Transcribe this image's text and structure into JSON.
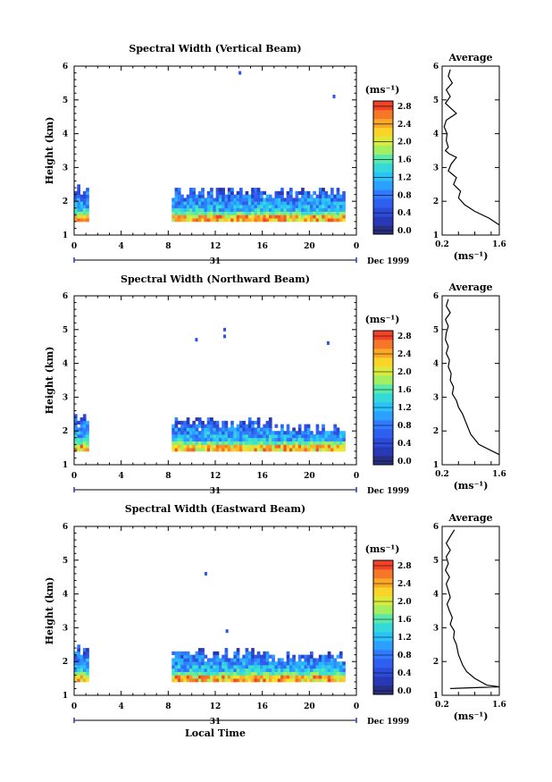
{
  "chart_data": [
    {
      "type": "heatmap",
      "title": "Spectral Width (Vertical Beam)",
      "ylabel": "Height (km)",
      "xlabel": "",
      "xticks": [
        "0",
        "4",
        "8",
        "12",
        "16",
        "20",
        "0"
      ],
      "yticks": [
        "1",
        "2",
        "3",
        "4",
        "5",
        "6"
      ],
      "xlim": [
        0,
        24
      ],
      "ylim": [
        1,
        6
      ],
      "date_axis": {
        "day": "31",
        "month_year": "Dec 1999"
      },
      "colorbar": {
        "unit": "(ms⁻¹)",
        "ticks": [
          "0.0",
          "0.4",
          "0.8",
          "1.2",
          "1.6",
          "2.0",
          "2.4",
          "2.8"
        ],
        "min": 0.0,
        "max": 3.0
      },
      "data_regions": [
        {
          "t0": 0.0,
          "t1": 1.2,
          "h0": 1.4,
          "h1": 2.5
        },
        {
          "t0": 8.3,
          "t1": 22.9,
          "h0": 1.4,
          "h1": 2.4
        }
      ],
      "isolated_points": [
        {
          "t": 14.1,
          "h": 5.8
        },
        {
          "t": 22.1,
          "h": 5.1
        }
      ],
      "average_profile": {
        "title": "Average",
        "xlabel": "(ms⁻¹)",
        "xticks": [
          "0.2",
          "1.6"
        ],
        "yticks": [
          "1",
          "2",
          "3",
          "4",
          "5",
          "6"
        ],
        "xlim": [
          0.2,
          1.6
        ],
        "ylim": [
          1,
          6
        ],
        "x": [
          0.4,
          0.35,
          0.45,
          0.3,
          0.4,
          0.28,
          0.55,
          0.3,
          0.25,
          0.32,
          0.3,
          0.35,
          0.28,
          0.38,
          0.55,
          0.42,
          0.35,
          0.55,
          0.48,
          0.65,
          0.6,
          0.75,
          1.0,
          1.35,
          1.6
        ],
        "y": [
          5.9,
          5.7,
          5.5,
          5.3,
          5.1,
          4.9,
          4.6,
          4.4,
          4.2,
          4.0,
          3.8,
          3.6,
          3.5,
          3.4,
          3.3,
          3.1,
          2.9,
          2.7,
          2.5,
          2.3,
          2.1,
          1.9,
          1.7,
          1.5,
          1.3
        ]
      }
    },
    {
      "type": "heatmap",
      "title": "Spectral Width (Northward Beam)",
      "ylabel": "Height (km)",
      "xlabel": "",
      "xticks": [
        "0",
        "4",
        "8",
        "12",
        "16",
        "20",
        "0"
      ],
      "yticks": [
        "1",
        "2",
        "3",
        "4",
        "5",
        "6"
      ],
      "xlim": [
        0,
        24
      ],
      "ylim": [
        1,
        6
      ],
      "date_axis": {
        "day": "31",
        "month_year": "Dec 1999"
      },
      "colorbar": {
        "unit": "(ms⁻¹)",
        "ticks": [
          "0.0",
          "0.4",
          "0.8",
          "1.2",
          "1.6",
          "2.0",
          "2.4",
          "2.8"
        ],
        "min": 0.0,
        "max": 3.0
      },
      "data_regions": [
        {
          "t0": 0.0,
          "t1": 1.2,
          "h0": 1.4,
          "h1": 2.5
        },
        {
          "t0": 8.3,
          "t1": 16.8,
          "h0": 1.4,
          "h1": 2.4
        },
        {
          "t0": 16.8,
          "t1": 22.9,
          "h0": 1.4,
          "h1": 2.2
        }
      ],
      "isolated_points": [
        {
          "t": 10.4,
          "h": 4.7
        },
        {
          "t": 12.8,
          "h": 4.8
        },
        {
          "t": 12.8,
          "h": 5.0
        },
        {
          "t": 21.6,
          "h": 4.6
        }
      ],
      "average_profile": {
        "title": "Average",
        "xlabel": "(ms⁻¹)",
        "xticks": [
          "0.2",
          "1.6"
        ],
        "yticks": [
          "1",
          "2",
          "3",
          "4",
          "5",
          "6"
        ],
        "xlim": [
          0.2,
          1.6
        ],
        "ylim": [
          1,
          6
        ],
        "x": [
          0.35,
          0.3,
          0.4,
          0.28,
          0.35,
          0.3,
          0.28,
          0.35,
          0.3,
          0.38,
          0.35,
          0.42,
          0.4,
          0.48,
          0.45,
          0.55,
          0.6,
          0.7,
          0.8,
          0.9,
          1.1,
          1.6
        ],
        "y": [
          5.9,
          5.7,
          5.5,
          5.3,
          5.1,
          4.9,
          4.7,
          4.5,
          4.3,
          4.1,
          3.9,
          3.7,
          3.5,
          3.3,
          3.1,
          2.9,
          2.7,
          2.5,
          2.2,
          1.9,
          1.6,
          1.3
        ]
      }
    },
    {
      "type": "heatmap",
      "title": "Spectral Width (Eastward Beam)",
      "ylabel": "Height (km)",
      "xlabel": "Local Time",
      "xticks": [
        "0",
        "4",
        "8",
        "12",
        "16",
        "20",
        "0"
      ],
      "yticks": [
        "1",
        "2",
        "3",
        "4",
        "5",
        "6"
      ],
      "xlim": [
        0,
        24
      ],
      "ylim": [
        1,
        6
      ],
      "date_axis": {
        "day": "31",
        "month_year": "Dec 1999"
      },
      "colorbar": {
        "unit": "(ms⁻¹)",
        "ticks": [
          "0.0",
          "0.4",
          "0.8",
          "1.2",
          "1.6",
          "2.0",
          "2.4",
          "2.8"
        ],
        "min": 0.0,
        "max": 3.0
      },
      "data_regions": [
        {
          "t0": 0.0,
          "t1": 1.2,
          "h0": 1.4,
          "h1": 2.5
        },
        {
          "t0": 8.3,
          "t1": 16.8,
          "h0": 1.4,
          "h1": 2.4
        },
        {
          "t0": 16.8,
          "t1": 22.9,
          "h0": 1.4,
          "h1": 2.3
        }
      ],
      "isolated_points": [
        {
          "t": 11.2,
          "h": 4.6
        },
        {
          "t": 13.0,
          "h": 2.9
        }
      ],
      "average_profile": {
        "title": "Average",
        "xlabel": "(ms⁻¹)",
        "xticks": [
          "0.2",
          "1.6"
        ],
        "yticks": [
          "1",
          "2",
          "3",
          "4",
          "5",
          "6"
        ],
        "xlim": [
          0.2,
          1.6
        ],
        "ylim": [
          1,
          6
        ],
        "x": [
          0.5,
          0.4,
          0.3,
          0.4,
          0.3,
          0.35,
          0.28,
          0.38,
          0.3,
          0.35,
          0.4,
          0.32,
          0.38,
          0.45,
          0.4,
          0.5,
          0.48,
          0.55,
          0.6,
          0.7,
          0.8,
          1.0,
          1.3,
          1.6,
          0.4
        ],
        "y": [
          5.9,
          5.7,
          5.5,
          5.3,
          5.1,
          4.9,
          4.7,
          4.5,
          4.3,
          4.1,
          3.9,
          3.7,
          3.5,
          3.3,
          3.1,
          2.9,
          2.7,
          2.5,
          2.2,
          1.9,
          1.7,
          1.5,
          1.3,
          1.25,
          1.2
        ]
      }
    }
  ]
}
